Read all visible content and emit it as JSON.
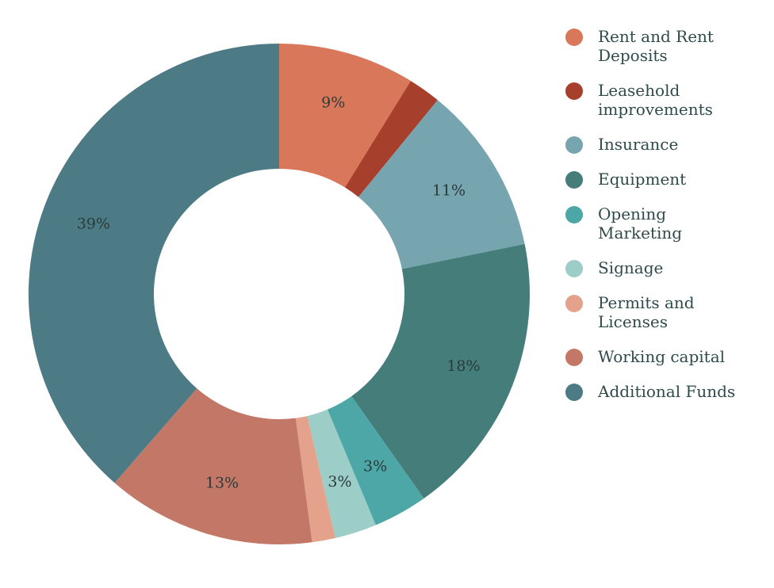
{
  "chart_data": {
    "type": "pie",
    "donut": true,
    "title": "",
    "legend_position": "right",
    "slices": [
      {
        "name": "Rent and Rent Deposits",
        "value": 8.8,
        "label": "9%",
        "color": "#d9775a"
      },
      {
        "name": "Leasehold improvements",
        "value": 2.1,
        "label": "",
        "color": "#a63f2b"
      },
      {
        "name": "Insurance",
        "value": 10.9,
        "label": "11%",
        "color": "#76a5af"
      },
      {
        "name": "Equipment",
        "value": 18.4,
        "label": "18%",
        "color": "#457d7a"
      },
      {
        "name": "Opening Marketing",
        "value": 3.5,
        "label": "3%",
        "color": "#4da7a6"
      },
      {
        "name": "Signage",
        "value": 2.7,
        "label": "3%",
        "color": "#9ccdc7"
      },
      {
        "name": "Permits and Licenses",
        "value": 1.5,
        "label": "",
        "color": "#e4a28c"
      },
      {
        "name": "Working capital",
        "value": 13.5,
        "label": "13%",
        "color": "#c27767"
      },
      {
        "name": "Additional Funds",
        "value": 38.6,
        "label": "39%",
        "color": "#4c7a85"
      }
    ],
    "legend": [
      [
        "Rent and Rent",
        "Deposits"
      ],
      [
        "Leasehold",
        "improvements"
      ],
      [
        "Insurance"
      ],
      [
        "Equipment"
      ],
      [
        "Opening",
        "Marketing"
      ],
      [
        "Signage"
      ],
      [
        "Permits and",
        "Licenses"
      ],
      [
        "Working capital"
      ],
      [
        "Additional Funds"
      ]
    ]
  }
}
